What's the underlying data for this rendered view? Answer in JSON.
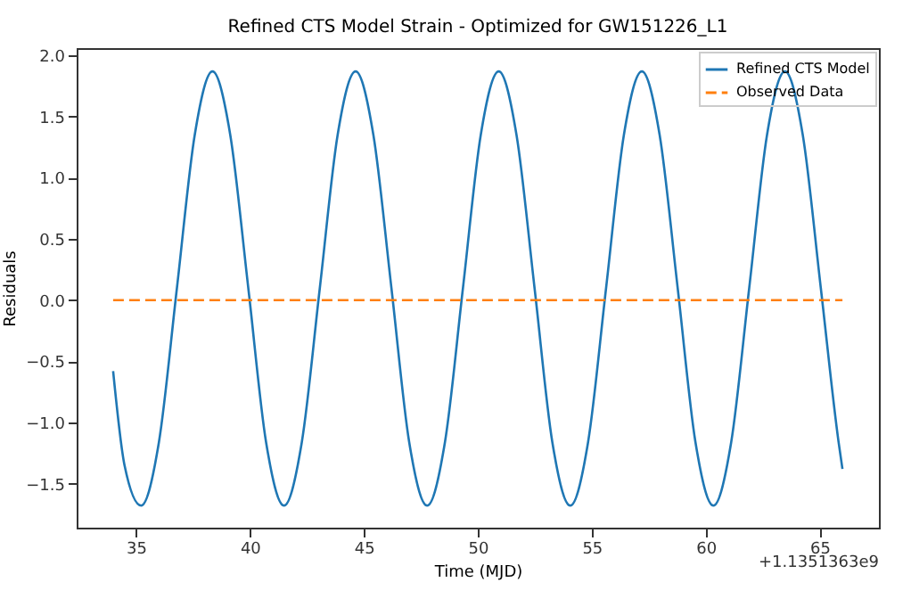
{
  "chart_data": {
    "type": "line",
    "title": "Refined CTS Model Strain - Optimized for GW151226_L1",
    "xlabel": "Time (MJD)",
    "ylabel": "Residuals",
    "annotations": [
      "+1.1351363e9"
    ],
    "xlim": [
      32.4,
      67.6
    ],
    "xticks": [
      35,
      40,
      45,
      50,
      55,
      60,
      65
    ],
    "ylim": [
      -1.86,
      2.06
    ],
    "yticks": [
      -1.5,
      {
        "value": -1,
        "label": "−1.0"
      },
      -0.5,
      {
        "value": 0,
        "label": "0.0"
      },
      0.5,
      {
        "value": 1,
        "label": "1.0"
      },
      1.5,
      {
        "value": 2,
        "label": "2.0"
      }
    ],
    "grid": false,
    "legend": "top right",
    "series": [
      {
        "name": "Refined CTS Model",
        "color": "#1f77b4",
        "line_style": "solid",
        "x": [
          34,
          34.5,
          35.23,
          36.01,
          36.8,
          37.58,
          38.36,
          39.14,
          39.93,
          40.71,
          41.5,
          42.28,
          43.07,
          43.85,
          44.64,
          45.42,
          46.21,
          46.99,
          47.78,
          48.56,
          49.35,
          50.13,
          50.92,
          51.7,
          52.49,
          53.27,
          54.06,
          54.84,
          55.63,
          56.41,
          57.2,
          57.98,
          58.77,
          59.55,
          60.34,
          61.12,
          61.91,
          62.69,
          63.48,
          64.26,
          65.05,
          65.83,
          66
        ],
        "values": [
          -0.58,
          -1.35,
          -1.68,
          -1.16,
          0.1,
          1.35,
          1.87,
          1.35,
          0.1,
          -1.16,
          -1.68,
          -1.16,
          0.1,
          1.35,
          1.87,
          1.35,
          0.1,
          -1.16,
          -1.68,
          -1.16,
          0.1,
          1.35,
          1.87,
          1.35,
          0.1,
          -1.16,
          -1.68,
          -1.16,
          0.1,
          1.35,
          1.87,
          1.35,
          0.1,
          -1.16,
          -1.68,
          -1.16,
          0.1,
          1.35,
          1.87,
          1.35,
          0.1,
          -1.16,
          -1.38
        ]
      },
      {
        "name": "Observed Data",
        "color": "#ff7f0e",
        "line_style": "dashed",
        "x": [
          34,
          66
        ],
        "values": [
          0,
          0
        ]
      }
    ]
  }
}
